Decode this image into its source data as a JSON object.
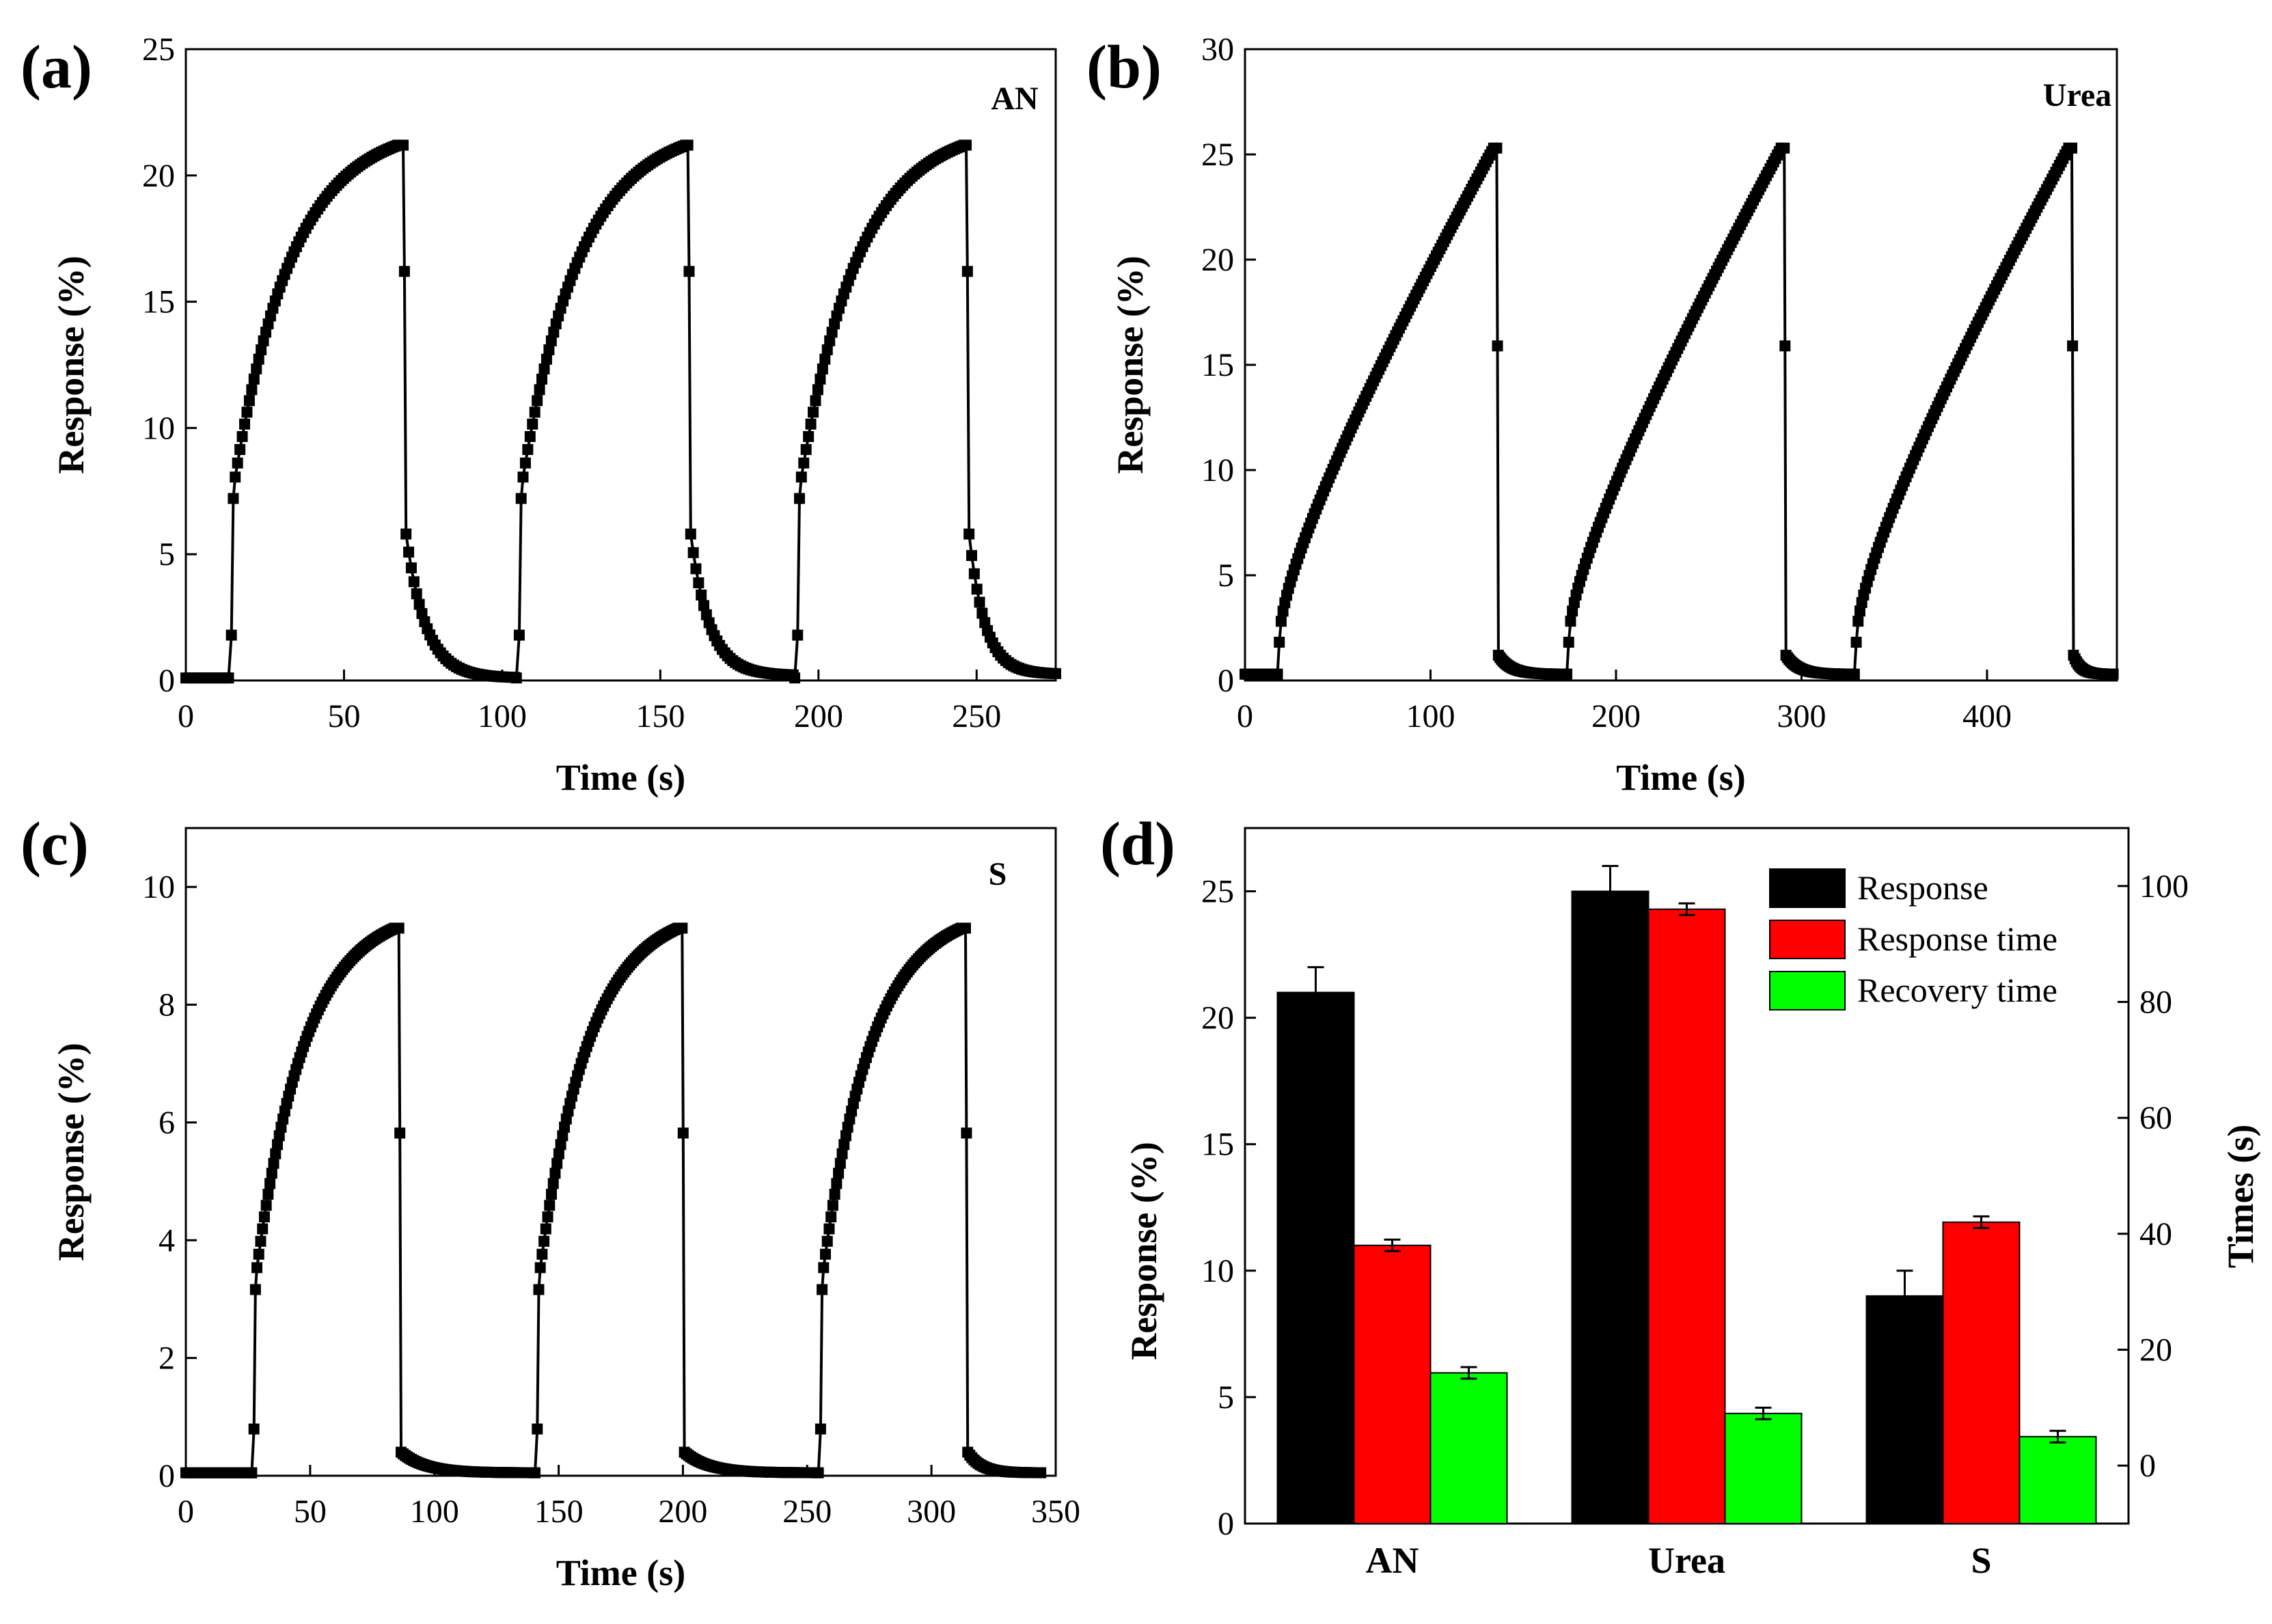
{
  "chart_data": [
    {
      "id": "a",
      "type": "line",
      "panel_label": "(a)",
      "annotation": "AN",
      "xlabel": "Time (s)",
      "ylabel": "Response (%)",
      "xlim": [
        0,
        275
      ],
      "ylim": [
        0,
        25
      ],
      "xticks": [
        0,
        50,
        100,
        150,
        200,
        250
      ],
      "yticks": [
        0,
        5,
        10,
        15,
        20,
        25
      ],
      "marker": "square",
      "style": "fast-rise",
      "series": [
        {
          "name": "AN",
          "baseline": 0.1,
          "cycles": [
            {
              "on": 14,
              "peak_time": 67,
              "peak": 21.2,
              "off": 69,
              "end": 104,
              "recovery_start": 5.8,
              "recovery_end": 0.1
            },
            {
              "on": 105,
              "peak_time": 158,
              "peak": 21.2,
              "off": 159,
              "end": 192,
              "recovery_start": 5.8,
              "recovery_end": 0.2
            },
            {
              "on": 193,
              "peak_time": 246,
              "peak": 21.2,
              "off": 247,
              "end": 275,
              "recovery_start": 5.8,
              "recovery_end": 0.25
            }
          ]
        }
      ]
    },
    {
      "id": "b",
      "type": "line",
      "panel_label": "(b)",
      "annotation": "Urea",
      "xlabel": "Time (s)",
      "ylabel": "Response (%)",
      "xlim": [
        0,
        470
      ],
      "ylim": [
        0,
        30
      ],
      "xticks": [
        0,
        100,
        200,
        300,
        400
      ],
      "yticks": [
        0,
        5,
        10,
        15,
        20,
        25,
        30
      ],
      "marker": "square",
      "style": "linear-rise",
      "series": [
        {
          "name": "Urea",
          "baseline": 0.3,
          "cycles": [
            {
              "on": 18,
              "peak_time": 134,
              "peak": 25.3,
              "off": 136,
              "end": 173,
              "recovery_start": 1.2,
              "recovery_end": 0.3
            },
            {
              "on": 174,
              "peak_time": 289,
              "peak": 25.3,
              "off": 291,
              "end": 328,
              "recovery_start": 1.2,
              "recovery_end": 0.3
            },
            {
              "on": 329,
              "peak_time": 444,
              "peak": 25.3,
              "off": 446,
              "end": 468,
              "recovery_start": 1.2,
              "recovery_end": 0.3
            }
          ]
        }
      ]
    },
    {
      "id": "c",
      "type": "line",
      "panel_label": "(c)",
      "annotation": "S",
      "xlabel": "Time (s)",
      "ylabel": "Response (%)",
      "xlim": [
        0,
        350
      ],
      "ylim": [
        0,
        11
      ],
      "xticks": [
        0,
        50,
        100,
        150,
        200,
        250,
        300,
        350
      ],
      "yticks": [
        0,
        2,
        4,
        6,
        8,
        10
      ],
      "marker": "square",
      "style": "fast-rise",
      "series": [
        {
          "name": "S",
          "baseline": 0.05,
          "cycles": [
            {
              "on": 27,
              "peak_time": 84,
              "peak": 9.3,
              "off": 86,
              "end": 140,
              "recovery_start": 0.4,
              "recovery_end": 0.05
            },
            {
              "on": 141,
              "peak_time": 198,
              "peak": 9.3,
              "off": 200,
              "end": 254,
              "recovery_start": 0.4,
              "recovery_end": 0.05
            },
            {
              "on": 255,
              "peak_time": 312,
              "peak": 9.3,
              "off": 314,
              "end": 344,
              "recovery_start": 0.4,
              "recovery_end": 0.05
            }
          ]
        }
      ]
    },
    {
      "id": "d",
      "type": "bar",
      "panel_label": "(d)",
      "categories": [
        "AN",
        "Urea",
        "S"
      ],
      "ylabel": "Response (%)",
      "ylabel_right": "Times (s)",
      "ylim": [
        0,
        27.5
      ],
      "yticks": [
        0,
        5,
        10,
        15,
        20,
        25
      ],
      "ylim_right": [
        -10,
        110
      ],
      "yticks_right": [
        0,
        20,
        40,
        60,
        80,
        100
      ],
      "series": [
        {
          "name": "Response",
          "axis": "left",
          "color": "#000000",
          "values": [
            21.0,
            25.0,
            9.0
          ],
          "errors": [
            1.0,
            1.0,
            1.0
          ]
        },
        {
          "name": "Response time",
          "axis": "right",
          "color": "#ff0000",
          "values": [
            38,
            96,
            42
          ],
          "errors": [
            1,
            1,
            1
          ]
        },
        {
          "name": "Recovery time",
          "axis": "right",
          "color": "#00ff00",
          "values": [
            16,
            9,
            5
          ],
          "errors": [
            1,
            1,
            1
          ]
        }
      ]
    }
  ]
}
